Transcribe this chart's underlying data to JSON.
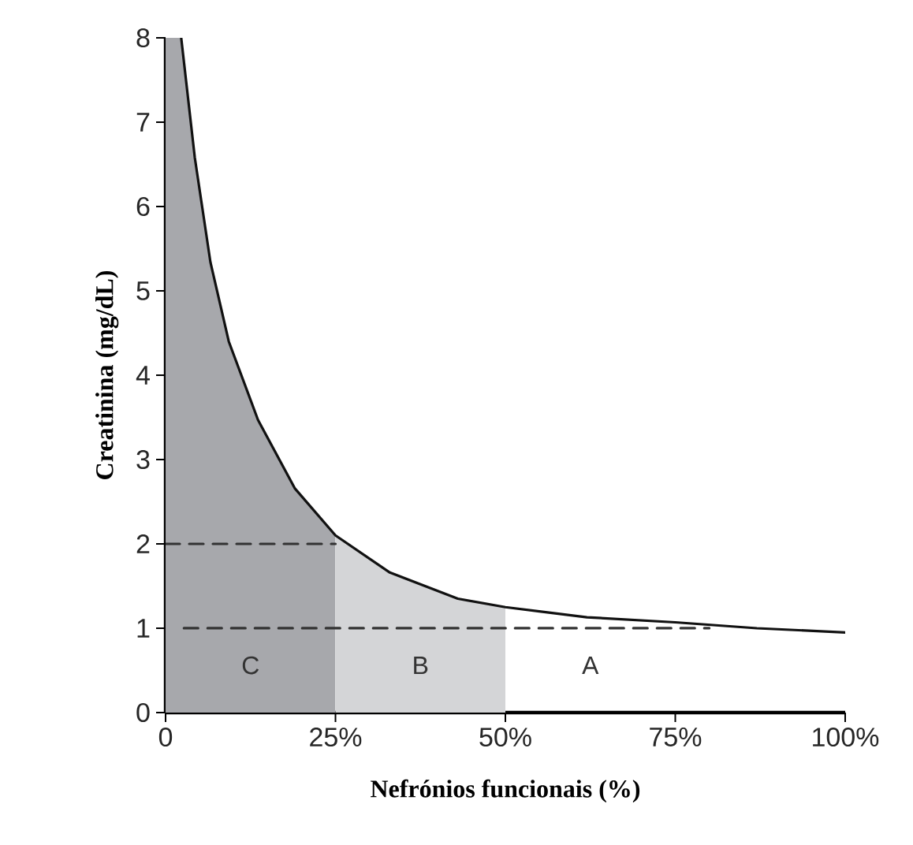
{
  "chart_data": {
    "type": "line",
    "xlabel": "Nefrónios funcionais (%)",
    "ylabel": "Creatinina (mg/dL)",
    "xlim": [
      0,
      100
    ],
    "ylim": [
      0,
      8
    ],
    "xticks": [
      0,
      {
        "value": 25,
        "label": "25%"
      },
      {
        "value": 50,
        "label": "50%"
      },
      {
        "value": 75,
        "label": "75%"
      },
      {
        "value": 100,
        "label": "100%"
      }
    ],
    "yticks": [
      0,
      1,
      2,
      3,
      4,
      5,
      6,
      7,
      8
    ],
    "series": [
      {
        "type": "area",
        "color": "#a7a8ac",
        "x": [
          0,
          2.3,
          4.3,
          6.6,
          9.3,
          13.6,
          19,
          25
        ],
        "values": [
          8,
          8,
          6.58,
          5.34,
          4.4,
          3.47,
          2.66,
          2.1
        ]
      },
      {
        "type": "area",
        "color": "#d4d5d7",
        "x": [
          25,
          33,
          43,
          50
        ],
        "values": [
          2.1,
          1.66,
          1.35,
          1.25
        ]
      },
      {
        "type": "line",
        "color": "#333333",
        "line_style": "dashed",
        "x": [
          0,
          25
        ],
        "values": [
          2,
          2
        ]
      },
      {
        "type": "line",
        "color": "#333333",
        "line_style": "dashed",
        "x": [
          2.7,
          80
        ],
        "values": [
          1,
          1
        ]
      },
      {
        "type": "line",
        "color": "#111111",
        "x": [
          2.3,
          4.3,
          6.6,
          9.3,
          13.6,
          19,
          25,
          33,
          43,
          50,
          55,
          62,
          75,
          87,
          100
        ],
        "values": [
          8,
          6.58,
          5.34,
          4.4,
          3.47,
          2.66,
          2.1,
          1.66,
          1.35,
          1.25,
          1.2,
          1.13,
          1.07,
          1.0,
          0.95
        ]
      }
    ],
    "annotations": [
      "C",
      "B",
      "A"
    ]
  }
}
